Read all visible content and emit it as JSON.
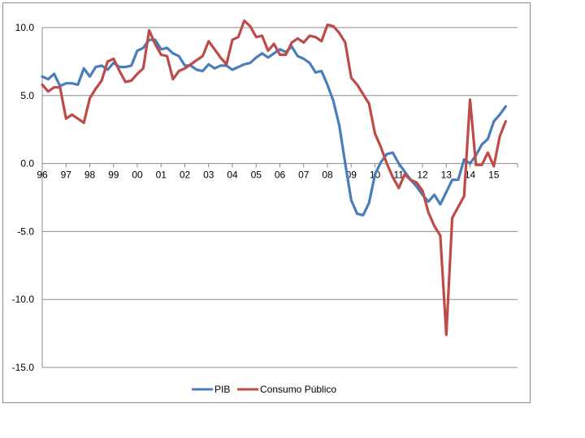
{
  "chart_data": {
    "type": "line",
    "title": "",
    "xlabel": "",
    "ylabel": "",
    "ylim": [
      -15,
      10
    ],
    "yticks": [
      10,
      5,
      0,
      -5,
      -10,
      -15
    ],
    "ytick_labels": [
      "10.0",
      "5.0",
      "0.0",
      "-5.0",
      "-10.0",
      "-15.0"
    ],
    "xlim": [
      1996,
      2016
    ],
    "year_labels": [
      "96",
      "97",
      "98",
      "99",
      "00",
      "01",
      "02",
      "03",
      "04",
      "05",
      "06",
      "07",
      "08",
      "09",
      "10",
      "11",
      "12",
      "13",
      "14",
      "15"
    ],
    "grid": true,
    "legend_position": "bottom",
    "series": [
      {
        "name": "PIB",
        "color": "#4a7ebb",
        "x": [
          1996.0,
          1996.25,
          1996.5,
          1996.75,
          1997.0,
          1997.25,
          1997.5,
          1997.75,
          1998.0,
          1998.25,
          1998.5,
          1998.75,
          1999.0,
          1999.25,
          1999.5,
          1999.75,
          2000.0,
          2000.25,
          2000.5,
          2000.75,
          2001.0,
          2001.25,
          2001.5,
          2001.75,
          2002.0,
          2002.25,
          2002.5,
          2002.75,
          2003.0,
          2003.25,
          2003.5,
          2003.75,
          2004.0,
          2004.25,
          2004.5,
          2004.75,
          2005.0,
          2005.25,
          2005.5,
          2005.75,
          2006.0,
          2006.25,
          2006.5,
          2006.75,
          2007.0,
          2007.25,
          2007.5,
          2007.75,
          2008.0,
          2008.25,
          2008.5,
          2008.75,
          2009.0,
          2009.25,
          2009.5,
          2009.75,
          2010.0,
          2010.25,
          2010.5,
          2010.75,
          2011.0,
          2011.25,
          2011.5,
          2011.75,
          2012.0,
          2012.25,
          2012.5,
          2012.75,
          2013.0,
          2013.25,
          2013.5,
          2013.75,
          2014.0,
          2014.25,
          2014.5,
          2014.75,
          2015.0,
          2015.25,
          2015.5
        ],
        "values": [
          6.4,
          6.2,
          6.6,
          5.7,
          5.9,
          5.9,
          5.8,
          7.0,
          6.4,
          7.1,
          7.2,
          6.9,
          7.4,
          7.1,
          7.1,
          7.2,
          8.3,
          8.5,
          9.1,
          9.1,
          8.4,
          8.5,
          8.1,
          7.9,
          7.2,
          7.2,
          6.9,
          6.8,
          7.3,
          7.0,
          7.2,
          7.2,
          6.9,
          7.1,
          7.3,
          7.4,
          7.8,
          8.1,
          7.8,
          8.1,
          8.4,
          8.2,
          8.6,
          7.9,
          7.7,
          7.4,
          6.7,
          6.8,
          5.8,
          4.6,
          2.8,
          0.0,
          -2.7,
          -3.7,
          -3.8,
          -2.9,
          -0.8,
          0.1,
          0.7,
          0.8,
          0.0,
          -0.6,
          -1.2,
          -1.7,
          -2.3,
          -2.8,
          -2.3,
          -3.0,
          -2.1,
          -1.2,
          -1.2,
          0.3,
          0.0,
          0.6,
          1.4,
          1.8,
          3.1,
          3.6,
          4.2
        ]
      },
      {
        "name": "Consumo Público",
        "color": "#be4b48",
        "x": [
          1996.0,
          1996.25,
          1996.5,
          1996.75,
          1997.0,
          1997.25,
          1997.5,
          1997.75,
          1998.0,
          1998.25,
          1998.5,
          1998.75,
          1999.0,
          1999.25,
          1999.5,
          1999.75,
          2000.0,
          2000.25,
          2000.5,
          2000.75,
          2001.0,
          2001.25,
          2001.5,
          2001.75,
          2002.0,
          2002.25,
          2002.5,
          2002.75,
          2003.0,
          2003.25,
          2003.5,
          2003.75,
          2004.0,
          2004.25,
          2004.5,
          2004.75,
          2005.0,
          2005.25,
          2005.5,
          2005.75,
          2006.0,
          2006.25,
          2006.5,
          2006.75,
          2007.0,
          2007.25,
          2007.5,
          2007.75,
          2008.0,
          2008.25,
          2008.5,
          2008.75,
          2009.0,
          2009.25,
          2009.5,
          2009.75,
          2010.0,
          2010.25,
          2010.5,
          2010.75,
          2011.0,
          2011.25,
          2011.5,
          2011.75,
          2012.0,
          2012.25,
          2012.5,
          2012.75,
          2013.0,
          2013.25,
          2013.5,
          2013.75,
          2014.0,
          2014.25,
          2014.5,
          2014.75,
          2015.0,
          2015.25,
          2015.5
        ],
        "values": [
          5.8,
          5.3,
          5.6,
          5.6,
          3.3,
          3.6,
          3.3,
          3.0,
          4.8,
          5.5,
          6.1,
          7.5,
          7.7,
          6.8,
          6.0,
          6.1,
          6.6,
          7.0,
          9.8,
          8.8,
          8.0,
          7.9,
          6.2,
          6.8,
          7.0,
          7.3,
          7.6,
          7.9,
          9.0,
          8.4,
          7.8,
          7.3,
          9.1,
          9.3,
          10.5,
          10.1,
          9.3,
          9.4,
          8.3,
          8.8,
          8.0,
          8.0,
          8.9,
          9.2,
          8.9,
          9.4,
          9.3,
          9.0,
          10.2,
          10.1,
          9.6,
          8.9,
          6.3,
          5.8,
          5.1,
          4.4,
          2.2,
          1.2,
          0.0,
          -1.0,
          -1.8,
          -0.8,
          -1.2,
          -1.4,
          -2.0,
          -3.6,
          -4.6,
          -5.3,
          -12.6,
          -4.0,
          -3.2,
          -2.4,
          4.7,
          -0.1,
          -0.1,
          0.8,
          -0.2,
          2.0,
          3.1
        ]
      }
    ]
  }
}
